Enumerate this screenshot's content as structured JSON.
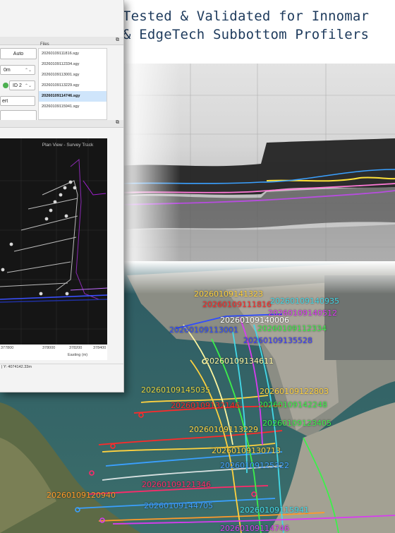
{
  "headline": {
    "line1": "Tested & Validated for Innomar",
    "line2": "& EdgeTech Subbottom Profilers"
  },
  "app": {
    "auto_button": "Auto",
    "depth_value": "0m",
    "id_value": "ID 2",
    "export_button": "ert",
    "files_header": "Files",
    "files": [
      "20260109111816.sgy",
      "20260109112334.sgy",
      "20260109113001.sgy",
      "20260109113229.sgy",
      "20260109114746.sgy",
      "20260109115941.sgy"
    ],
    "selected_file_index": 4,
    "plot_title": "Plan View - Survey Track",
    "x_ticks": [
      "377800",
      "378000",
      "378200",
      "378400"
    ],
    "x_axis_label": "Easting (m)",
    "status_text": "| Y: 4074142.33m"
  },
  "map_labels": [
    {
      "text": "20260109141323",
      "color": "#ffd23f"
    },
    {
      "text": "20260109111816",
      "color": "#ff2a2a"
    },
    {
      "text": "20260109140935",
      "color": "#43d9e8"
    },
    {
      "text": "20260109140512",
      "color": "#d83cf0"
    },
    {
      "text": "20260109140006",
      "color": "#ffffff"
    },
    {
      "text": "20260109113001",
      "color": "#2f4cff"
    },
    {
      "text": "20260109112334",
      "color": "#3cf04a"
    },
    {
      "text": "20260109135528",
      "color": "#3a3aff"
    },
    {
      "text": "20260109134611",
      "color": "#fff7a0"
    },
    {
      "text": "20260109145035",
      "color": "#e0d040"
    },
    {
      "text": "20260109122803",
      "color": "#ffd23f"
    },
    {
      "text": "20260109132146",
      "color": "#ff2a2a"
    },
    {
      "text": "20260109142248",
      "color": "#3cf04a"
    },
    {
      "text": "20260109123405",
      "color": "#3cf04a"
    },
    {
      "text": "20260109113229",
      "color": "#ffd23f"
    },
    {
      "text": "20260109130713",
      "color": "#ffd23f"
    },
    {
      "text": "20260109125322",
      "color": "#43a0ff"
    },
    {
      "text": "20260109121346",
      "color": "#ff2a6a"
    },
    {
      "text": "20260109120940",
      "color": "#ff9a2a"
    },
    {
      "text": "20260109144705",
      "color": "#43a0ff"
    },
    {
      "text": "20260109115941",
      "color": "#43d9e8"
    },
    {
      "text": "20260109114746",
      "color": "#d83cf0"
    }
  ]
}
